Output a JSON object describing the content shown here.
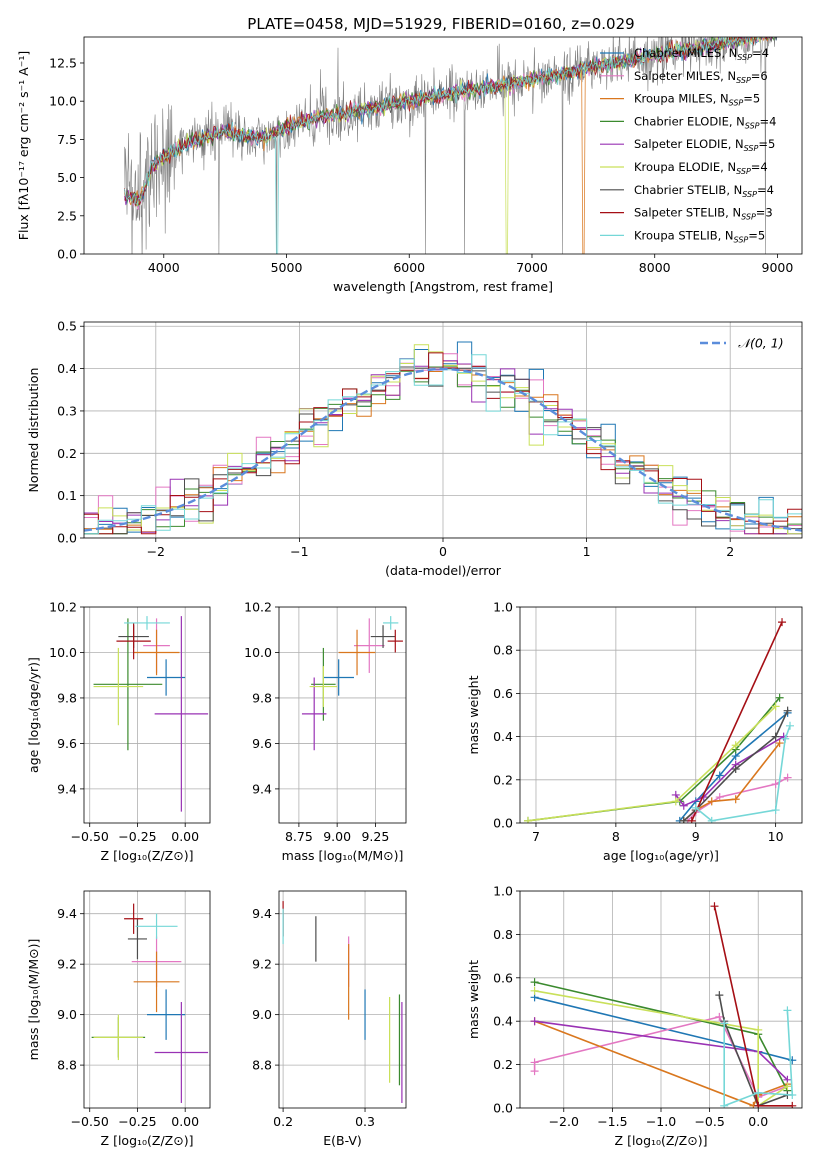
{
  "figure_title": "PLATE=0458, MJD=51929, FIBERID=0160, z=0.029",
  "colors": {
    "Chabrier MILES": "#1f77b4",
    "Salpeter MILES": "#e377c2",
    "Kroupa MILES": "#d9771e",
    "Chabrier ELODIE": "#3b8a2e",
    "Salpeter ELODIE": "#9932b4",
    "Kroupa ELODIE": "#c9e05a",
    "Chabrier STELIB": "#4d4d4d",
    "Salpeter STELIB": "#a50f15",
    "Kroupa STELIB": "#75d7d7",
    "data": "#7f7f7f",
    "normal_curve": "#5b8ddb"
  },
  "chart_data": [
    {
      "id": "spectrum",
      "type": "line",
      "title": "PLATE=0458, MJD=51929, FIBERID=0160, z=0.029",
      "xlabel": "wavelength [Angstrom, rest frame]",
      "ylabel": "Flux [fλ10⁻¹⁷ erg cm⁻² s⁻¹ A⁻¹]",
      "xlim": [
        3350,
        9200
      ],
      "ylim": [
        0,
        14.2
      ],
      "xticks": [
        4000,
        5000,
        6000,
        7000,
        8000,
        9000
      ],
      "yticks": [
        0.0,
        2.5,
        5.0,
        7.5,
        10.0,
        12.5
      ],
      "legend": [
        {
          "label": "Chabrier MILES, N",
          "sub": "SSP",
          "eq": "=4"
        },
        {
          "label": "Salpeter MILES, N",
          "sub": "SSP",
          "eq": "=6"
        },
        {
          "label": "Kroupa MILES, N",
          "sub": "SSP",
          "eq": "=5"
        },
        {
          "label": "Chabrier ELODIE, N",
          "sub": "SSP",
          "eq": "=4"
        },
        {
          "label": "Salpeter ELODIE, N",
          "sub": "SSP",
          "eq": "=5"
        },
        {
          "label": "Kroupa ELODIE, N",
          "sub": "SSP",
          "eq": "=4"
        },
        {
          "label": "Chabrier STELIB, N",
          "sub": "SSP",
          "eq": "=4"
        },
        {
          "label": "Salpeter STELIB, N",
          "sub": "SSP",
          "eq": "=3"
        },
        {
          "label": "Kroupa STELIB, N",
          "sub": "SSP",
          "eq": "=5"
        }
      ],
      "continuum": {
        "x": [
          3680,
          3800,
          3900,
          4000,
          4200,
          4500,
          4800,
          5000,
          5300,
          5600,
          6000,
          6400,
          6800,
          7200,
          7600,
          8000,
          8400,
          8800,
          9000
        ],
        "y": [
          3.9,
          3.4,
          5.6,
          6.4,
          7.3,
          8.0,
          7.6,
          8.3,
          9.0,
          9.4,
          10.0,
          10.6,
          11.1,
          11.7,
          12.4,
          13.0,
          13.6,
          14.2,
          14.5
        ]
      },
      "drops": [
        {
          "series": "Kroupa STELIB",
          "x": 4920,
          "to": 0
        },
        {
          "series": "Kroupa ELODIE",
          "x": 6800,
          "to": 0
        },
        {
          "series": "Kroupa MILES",
          "x": 7420,
          "to": 0
        }
      ]
    },
    {
      "id": "residuals",
      "type": "step",
      "xlabel": "(data-model)/error",
      "ylabel": "Normed distribution",
      "xlim": [
        -2.5,
        2.5
      ],
      "ylim": [
        0,
        0.51
      ],
      "xticks": [
        -2,
        -1,
        0,
        1,
        2
      ],
      "yticks": [
        0.0,
        0.1,
        0.2,
        0.3,
        0.4,
        0.5
      ],
      "bin_width": 0.1,
      "legend": "𝒩(0, 1)"
    },
    {
      "id": "age_vs_Z",
      "type": "errorbar",
      "xlabel": "Z [log₁₀(Z/Z⊙)]",
      "ylabel": "age  [log₁₀(age/yr)]",
      "xlim": [
        -0.53,
        0.13
      ],
      "ylim": [
        9.25,
        10.2
      ],
      "xticks": [
        -0.5,
        -0.25,
        0.0
      ],
      "xticklabels": [
        "−0.50",
        "−0.25",
        "0.00"
      ],
      "yticks": [
        9.4,
        9.6,
        9.8,
        10.0,
        10.2
      ],
      "points": [
        {
          "series": "Chabrier MILES",
          "x": -0.1,
          "xerr": 0.1,
          "y": 9.89,
          "yerr": 0.08
        },
        {
          "series": "Salpeter MILES",
          "x": -0.15,
          "xerr": 0.07,
          "y": 10.03,
          "yerr": 0.12
        },
        {
          "series": "Kroupa MILES",
          "x": -0.15,
          "xerr": 0.12,
          "y": 10.0,
          "yerr": 0.1
        },
        {
          "series": "Chabrier ELODIE",
          "x": -0.3,
          "xerr": 0.18,
          "y": 9.86,
          "yerr": 0.29
        },
        {
          "series": "Salpeter ELODIE",
          "x": -0.02,
          "xerr": 0.14,
          "y": 9.73,
          "yerr": 0.43
        },
        {
          "series": "Kroupa ELODIE",
          "x": -0.35,
          "xerr": 0.13,
          "y": 9.85,
          "yerr": 0.17
        },
        {
          "series": "Chabrier STELIB",
          "x": -0.27,
          "xerr": 0.08,
          "y": 10.07,
          "yerr": 0.05
        },
        {
          "series": "Salpeter STELIB",
          "x": -0.27,
          "xerr": 0.09,
          "y": 10.05,
          "yerr": 0.08
        },
        {
          "series": "Kroupa STELIB",
          "x": -0.2,
          "xerr": 0.12,
          "y": 10.13,
          "yerr": 0.03
        }
      ]
    },
    {
      "id": "age_vs_mass",
      "type": "errorbar",
      "xlabel": "mass [log₁₀(M/M⊙)]",
      "ylabel": "",
      "xlim": [
        8.62,
        9.45
      ],
      "ylim": [
        9.25,
        10.2
      ],
      "xticks": [
        8.75,
        9.0,
        9.25
      ],
      "xticklabels": [
        "8.75",
        "9.00",
        "9.25"
      ],
      "yticks": [
        9.4,
        9.6,
        9.8,
        10.0,
        10.2
      ],
      "points": [
        {
          "series": "Chabrier MILES",
          "x": 9.01,
          "xerr": 0.1,
          "y": 9.89,
          "yerr": 0.08
        },
        {
          "series": "Salpeter MILES",
          "x": 9.21,
          "xerr": 0.1,
          "y": 10.03,
          "yerr": 0.12
        },
        {
          "series": "Kroupa MILES",
          "x": 9.13,
          "xerr": 0.12,
          "y": 10.0,
          "yerr": 0.1
        },
        {
          "series": "Chabrier ELODIE",
          "x": 8.91,
          "xerr": 0.08,
          "y": 9.86,
          "yerr": 0.16
        },
        {
          "series": "Salpeter ELODIE",
          "x": 8.85,
          "xerr": 0.08,
          "y": 9.73,
          "yerr": 0.16
        },
        {
          "series": "Kroupa ELODIE",
          "x": 8.91,
          "xerr": 0.09,
          "y": 9.85,
          "yerr": 0.09
        },
        {
          "series": "Chabrier STELIB",
          "x": 9.3,
          "xerr": 0.08,
          "y": 10.07,
          "yerr": 0.05
        },
        {
          "series": "Salpeter STELIB",
          "x": 9.38,
          "xerr": 0.05,
          "y": 10.05,
          "yerr": 0.05
        },
        {
          "series": "Kroupa STELIB",
          "x": 9.35,
          "xerr": 0.05,
          "y": 10.13,
          "yerr": 0.03
        }
      ]
    },
    {
      "id": "weight_vs_age",
      "type": "line",
      "xlabel": "age  [log₁₀(age/yr)]",
      "ylabel": "mass weight",
      "xlim": [
        6.8,
        10.33
      ],
      "ylim": [
        0,
        1.0
      ],
      "xticks": [
        7,
        8,
        9,
        10
      ],
      "yticks": [
        0.0,
        0.2,
        0.4,
        0.6,
        0.8,
        1.0
      ],
      "series": [
        {
          "name": "Chabrier MILES",
          "x": [
            8.8,
            9.0,
            9.3,
            9.5,
            10.15
          ],
          "y": [
            0.01,
            0.1,
            0.22,
            0.31,
            0.51
          ]
        },
        {
          "name": "Salpeter MILES",
          "x": [
            8.9,
            9.0,
            9.3,
            10.0,
            10.15
          ],
          "y": [
            0.01,
            0.05,
            0.12,
            0.18,
            0.21
          ]
        },
        {
          "name": "Kroupa MILES",
          "x": [
            8.85,
            9.0,
            9.2,
            9.5,
            10.05
          ],
          "y": [
            0.01,
            0.06,
            0.1,
            0.11,
            0.37
          ]
        },
        {
          "name": "Chabrier ELODIE",
          "x": [
            6.9,
            8.8,
            9.5,
            10.05
          ],
          "y": [
            0.01,
            0.1,
            0.34,
            0.58
          ]
        },
        {
          "name": "Salpeter ELODIE",
          "x": [
            8.75,
            8.85,
            9.1,
            9.5,
            10.1
          ],
          "y": [
            0.13,
            0.08,
            0.12,
            0.27,
            0.4
          ]
        },
        {
          "name": "Kroupa ELODIE",
          "x": [
            6.9,
            8.75,
            9.5,
            10.0
          ],
          "y": [
            0.01,
            0.1,
            0.36,
            0.54
          ]
        },
        {
          "name": "Chabrier STELIB",
          "x": [
            8.85,
            9.0,
            9.5,
            10.0,
            10.15
          ],
          "y": [
            0.01,
            0.06,
            0.25,
            0.4,
            0.52
          ]
        },
        {
          "name": "Salpeter STELIB",
          "x": [
            8.95,
            10.08
          ],
          "y": [
            0.01,
            0.93
          ]
        },
        {
          "name": "Kroupa STELIB",
          "x": [
            9.0,
            9.2,
            10.0,
            10.12,
            10.18
          ],
          "y": [
            0.07,
            0.01,
            0.06,
            0.39,
            0.45
          ]
        }
      ]
    },
    {
      "id": "mass_vs_Z",
      "type": "errorbar",
      "xlabel": "Z [log₁₀(Z/Z⊙)]",
      "ylabel": "mass [log₁₀(M/M⊙)]",
      "xlim": [
        -0.53,
        0.13
      ],
      "ylim": [
        8.63,
        9.49
      ],
      "xticks": [
        -0.5,
        -0.25,
        0.0
      ],
      "xticklabels": [
        "−0.50",
        "−0.25",
        "0.00"
      ],
      "yticks": [
        8.8,
        9.0,
        9.2,
        9.4
      ],
      "points": [
        {
          "series": "Chabrier MILES",
          "x": -0.1,
          "xerr": 0.1,
          "y": 9.0,
          "yerr": 0.1
        },
        {
          "series": "Salpeter MILES",
          "x": -0.15,
          "xerr": 0.13,
          "y": 9.21,
          "yerr": 0.1
        },
        {
          "series": "Kroupa MILES",
          "x": -0.15,
          "xerr": 0.12,
          "y": 9.13,
          "yerr": 0.12
        },
        {
          "series": "Chabrier ELODIE",
          "x": -0.35,
          "xerr": 0.14,
          "y": 8.91,
          "yerr": 0.08
        },
        {
          "series": "Salpeter ELODIE",
          "x": -0.02,
          "xerr": 0.14,
          "y": 8.85,
          "yerr": 0.2
        },
        {
          "series": "Kroupa ELODIE",
          "x": -0.35,
          "xerr": 0.13,
          "y": 8.91,
          "yerr": 0.09
        },
        {
          "series": "Chabrier STELIB",
          "x": -0.25,
          "xerr": 0.05,
          "y": 9.3,
          "yerr": 0.08
        },
        {
          "series": "Salpeter STELIB",
          "x": -0.27,
          "xerr": 0.05,
          "y": 9.38,
          "yerr": 0.06
        },
        {
          "series": "Kroupa STELIB",
          "x": -0.15,
          "xerr": 0.11,
          "y": 9.35,
          "yerr": 0.05
        }
      ]
    },
    {
      "id": "mass_vs_ebv",
      "type": "errorbar",
      "xlabel": "E(B-V)",
      "ylabel": "",
      "xlim": [
        0.195,
        0.35
      ],
      "ylim": [
        8.63,
        9.49
      ],
      "xticks": [
        0.2,
        0.3
      ],
      "xticklabels": [
        "0.2",
        "0.3"
      ],
      "yticks": [
        8.8,
        9.0,
        9.2,
        9.4
      ],
      "points": [
        {
          "series": "Chabrier MILES",
          "x": 0.3,
          "xerr": 0,
          "y": 9.0,
          "yerr": 0.1
        },
        {
          "series": "Salpeter MILES",
          "x": 0.28,
          "xerr": 0,
          "y": 9.21,
          "yerr": 0.1
        },
        {
          "series": "Kroupa MILES",
          "x": 0.28,
          "xerr": 0,
          "y": 9.13,
          "yerr": 0.15
        },
        {
          "series": "Chabrier ELODIE",
          "x": 0.342,
          "xerr": 0,
          "y": 8.9,
          "yerr": 0.18
        },
        {
          "series": "Salpeter ELODIE",
          "x": 0.345,
          "xerr": 0,
          "y": 8.85,
          "yerr": 0.2
        },
        {
          "series": "Kroupa ELODIE",
          "x": 0.33,
          "xerr": 0,
          "y": 8.9,
          "yerr": 0.17
        },
        {
          "series": "Chabrier STELIB",
          "x": 0.24,
          "xerr": 0,
          "y": 9.3,
          "yerr": 0.09
        },
        {
          "series": "Salpeter STELIB",
          "x": 0.2,
          "xerr": 0,
          "y": 9.38,
          "yerr": 0.07
        },
        {
          "series": "Kroupa STELIB",
          "x": 0.2,
          "xerr": 0,
          "y": 9.35,
          "yerr": 0.07
        }
      ]
    },
    {
      "id": "weight_vs_Z",
      "type": "line",
      "xlabel": "Z [log₁₀(Z/Z⊙)]",
      "ylabel": "mass weight",
      "xlim": [
        -2.45,
        0.45
      ],
      "ylim": [
        0,
        1.0
      ],
      "xticks": [
        -2.0,
        -1.5,
        -1.0,
        -0.5,
        0.0
      ],
      "xticklabels": [
        "−2.0",
        "−1.5",
        "−1.0",
        "−0.5",
        "0.0"
      ],
      "yticks": [
        0.0,
        0.2,
        0.4,
        0.6,
        0.8,
        1.0
      ],
      "series": [
        {
          "name": "Chabrier MILES",
          "x": [
            -2.3,
            0.0,
            0.35
          ],
          "y": [
            0.51,
            0.26,
            0.22
          ]
        },
        {
          "name": "Salpeter MILES",
          "x": [
            -2.3,
            -2.3,
            -0.4,
            0.0,
            0.3
          ],
          "y": [
            0.17,
            0.21,
            0.42,
            0.05,
            0.1
          ]
        },
        {
          "name": "Kroupa MILES",
          "x": [
            -2.3,
            -0.05,
            0.0,
            0.3
          ],
          "y": [
            0.4,
            0.01,
            0.06,
            0.11
          ]
        },
        {
          "name": "Chabrier ELODIE",
          "x": [
            -2.3,
            0.0,
            0.3
          ],
          "y": [
            0.58,
            0.34,
            0.08
          ]
        },
        {
          "name": "Salpeter ELODIE",
          "x": [
            -2.3,
            0.0,
            0.3
          ],
          "y": [
            0.4,
            0.26,
            0.13
          ]
        },
        {
          "name": "Kroupa ELODIE",
          "x": [
            -2.3,
            0.0,
            0.0,
            0.3
          ],
          "y": [
            0.54,
            0.36,
            0.01,
            0.1
          ]
        },
        {
          "name": "Chabrier STELIB",
          "x": [
            -0.4,
            -0.35,
            0.0,
            0.3
          ],
          "y": [
            0.52,
            0.4,
            0.01,
            0.06
          ]
        },
        {
          "name": "Salpeter STELIB",
          "x": [
            -0.45,
            0.0,
            0.35
          ],
          "y": [
            0.93,
            0.01,
            0.01
          ]
        },
        {
          "name": "Kroupa STELIB",
          "x": [
            -0.35,
            -0.35,
            0.0,
            0.35,
            0.3
          ],
          "y": [
            0.39,
            0.01,
            0.07,
            0.06,
            0.45
          ]
        }
      ]
    }
  ]
}
